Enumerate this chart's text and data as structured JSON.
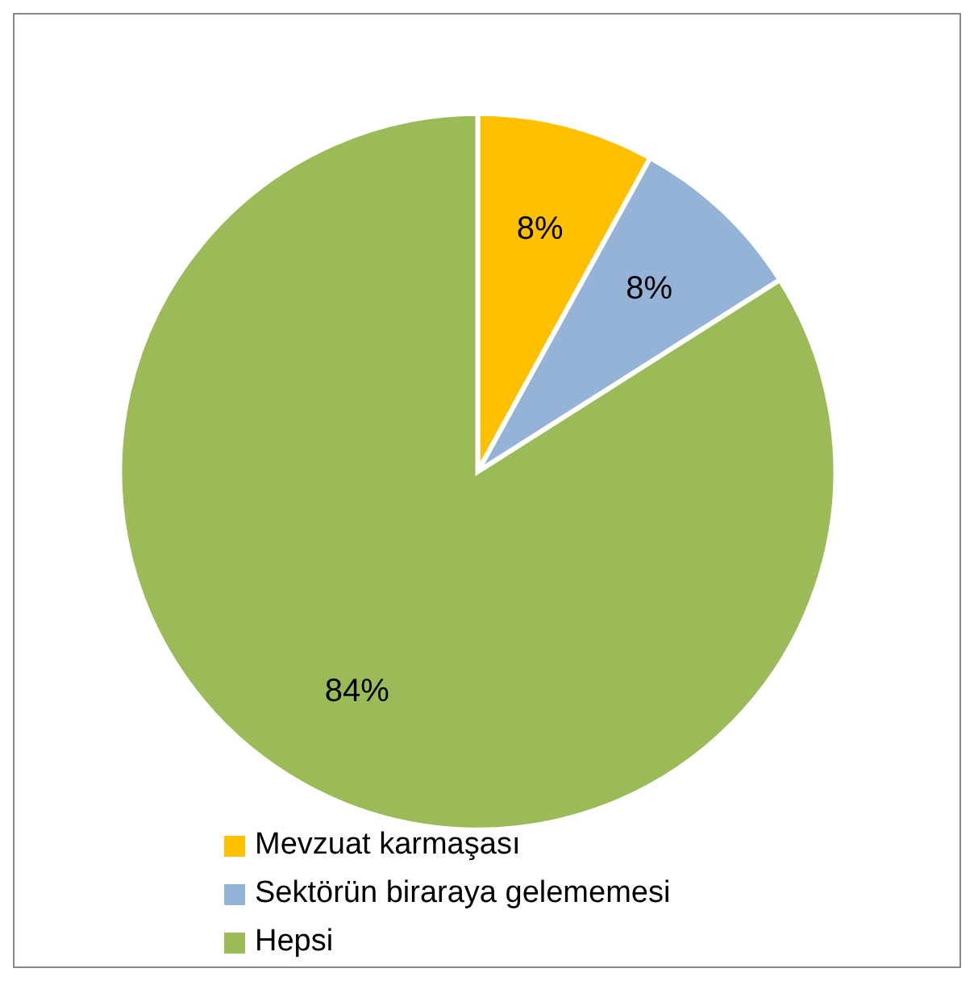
{
  "chart_data": {
    "type": "pie",
    "categories": [
      "Mevzuat karmaşası",
      "Sektörün biraraya gelememesi",
      "Hepsi"
    ],
    "values": [
      8,
      8,
      84
    ],
    "value_labels": [
      "8%",
      "8%",
      "84%"
    ],
    "colors": [
      "#ffc000",
      "#95b3d7",
      "#9bbb59"
    ],
    "legend": "bottom"
  }
}
